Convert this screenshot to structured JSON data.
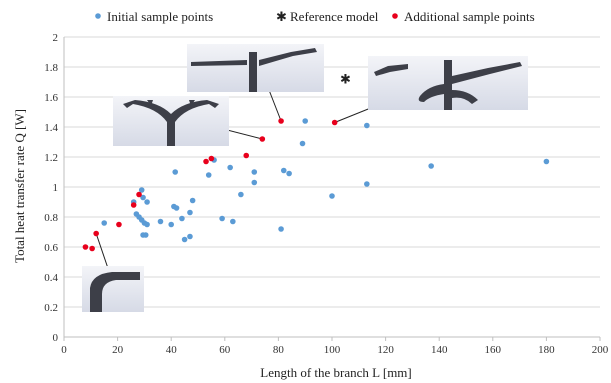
{
  "chart_data": {
    "type": "scatter",
    "xlabel": "Length of the branch L [mm]",
    "ylabel": "Total heat transfer rate Q [W]",
    "xlim": [
      0,
      200
    ],
    "ylim": [
      0,
      2
    ],
    "x_ticks": [
      0,
      20,
      40,
      60,
      80,
      100,
      120,
      140,
      160,
      180,
      200
    ],
    "y_ticks": [
      0,
      0.2,
      0.4,
      0.6,
      0.8,
      1,
      1.2,
      1.4,
      1.6,
      1.8,
      2
    ],
    "grid": "horizontal",
    "legend_position": "top",
    "series": [
      {
        "name": "Initial sample points",
        "marker": "circle",
        "color": "#5b9bd5",
        "points": [
          [
            15,
            0.76
          ],
          [
            26,
            0.9
          ],
          [
            27,
            0.82
          ],
          [
            28,
            0.8
          ],
          [
            29,
            0.98
          ],
          [
            29.5,
            0.93
          ],
          [
            29,
            0.78
          ],
          [
            30,
            0.76
          ],
          [
            30.5,
            0.68
          ],
          [
            31,
            0.75
          ],
          [
            29.5,
            0.68
          ],
          [
            31,
            0.9
          ],
          [
            36,
            0.77
          ],
          [
            40,
            0.75
          ],
          [
            41,
            0.87
          ],
          [
            42,
            0.86
          ],
          [
            41.5,
            1.1
          ],
          [
            44,
            0.79
          ],
          [
            45,
            0.65
          ],
          [
            47,
            0.67
          ],
          [
            47,
            0.83
          ],
          [
            48,
            0.91
          ],
          [
            54,
            1.08
          ],
          [
            56,
            1.18
          ],
          [
            59,
            0.79
          ],
          [
            62,
            1.13
          ],
          [
            63,
            0.77
          ],
          [
            66,
            0.95
          ],
          [
            71,
            1.03
          ],
          [
            71,
            1.1
          ],
          [
            81,
            0.72
          ],
          [
            82,
            1.11
          ],
          [
            84,
            1.09
          ],
          [
            89,
            1.29
          ],
          [
            90,
            1.44
          ],
          [
            100,
            0.94
          ],
          [
            113,
            1.02
          ],
          [
            113,
            1.41
          ],
          [
            137,
            1.14
          ],
          [
            180,
            1.17
          ]
        ]
      },
      {
        "name": "Reference model",
        "marker": "x",
        "color": "#222222",
        "points": [
          [
            105,
            1.72
          ]
        ]
      },
      {
        "name": "Additional sample points",
        "marker": "circle",
        "color": "#e8001c",
        "points": [
          [
            8,
            0.6
          ],
          [
            10.5,
            0.59
          ],
          [
            12,
            0.69
          ],
          [
            20.5,
            0.75
          ],
          [
            26,
            0.88
          ],
          [
            28,
            0.95
          ],
          [
            53,
            1.17
          ],
          [
            55,
            1.19
          ],
          [
            68,
            1.21
          ],
          [
            74,
            1.32
          ],
          [
            81,
            1.44
          ],
          [
            101,
            1.43
          ]
        ]
      }
    ],
    "insets": [
      {
        "name": "inset-straight-branch",
        "point": [
          12,
          0.69
        ]
      },
      {
        "name": "inset-y-branch",
        "point": [
          74,
          1.32
        ]
      },
      {
        "name": "inset-t-branch",
        "point": [
          81,
          1.44
        ]
      },
      {
        "name": "inset-complex-branch",
        "point": [
          101,
          1.43
        ]
      }
    ]
  }
}
